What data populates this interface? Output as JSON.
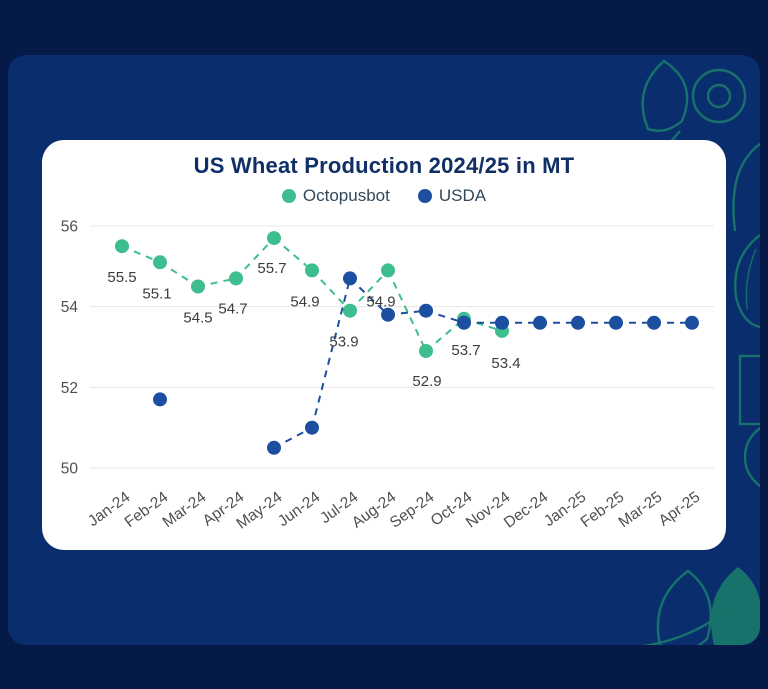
{
  "colors": {
    "outer_background": "#051a47",
    "panel_background": "#0a2d6e",
    "card_background": "#ffffff",
    "accent_teal": "#17766a",
    "title_text": "#102f66",
    "legend_text": "#33495a",
    "axis_text": "#4f4f4f",
    "data_label_text": "#3c3c3c",
    "gridline": "#e5e7ea",
    "octopusbot_green": "#3ebd8e",
    "usda_blue": "#1d4fa0"
  },
  "chart_data": {
    "type": "line",
    "title": "US Wheat Production 2024/25 in MT",
    "categories": [
      "Jan-24",
      "Feb-24",
      "Mar-24",
      "Apr-24",
      "May-24",
      "Jun-24",
      "Jul-24",
      "Aug-24",
      "Sep-24",
      "Oct-24",
      "Nov-24",
      "Dec-24",
      "Jan-25",
      "Feb-25",
      "Mar-25",
      "Apr-25"
    ],
    "series": [
      {
        "name": "Octopusbot",
        "color": "#3ebd8e",
        "line_style": "dashed",
        "show_point_labels": true,
        "values": [
          55.5,
          55.1,
          54.5,
          54.7,
          55.7,
          54.9,
          53.9,
          54.9,
          52.9,
          53.7,
          53.4,
          null,
          null,
          null,
          null,
          null
        ]
      },
      {
        "name": "USDA",
        "color": "#1d4fa0",
        "line_style": "dashed",
        "show_point_labels": false,
        "values": [
          null,
          51.7,
          null,
          null,
          50.5,
          51.0,
          54.7,
          53.8,
          53.9,
          53.6,
          53.6,
          53.6,
          53.6,
          53.6,
          53.6,
          53.6
        ]
      }
    ],
    "ylim": [
      50,
      56
    ],
    "yticks": [
      50,
      52,
      54,
      56
    ],
    "grid": "horizontal",
    "legend_position": "top"
  }
}
